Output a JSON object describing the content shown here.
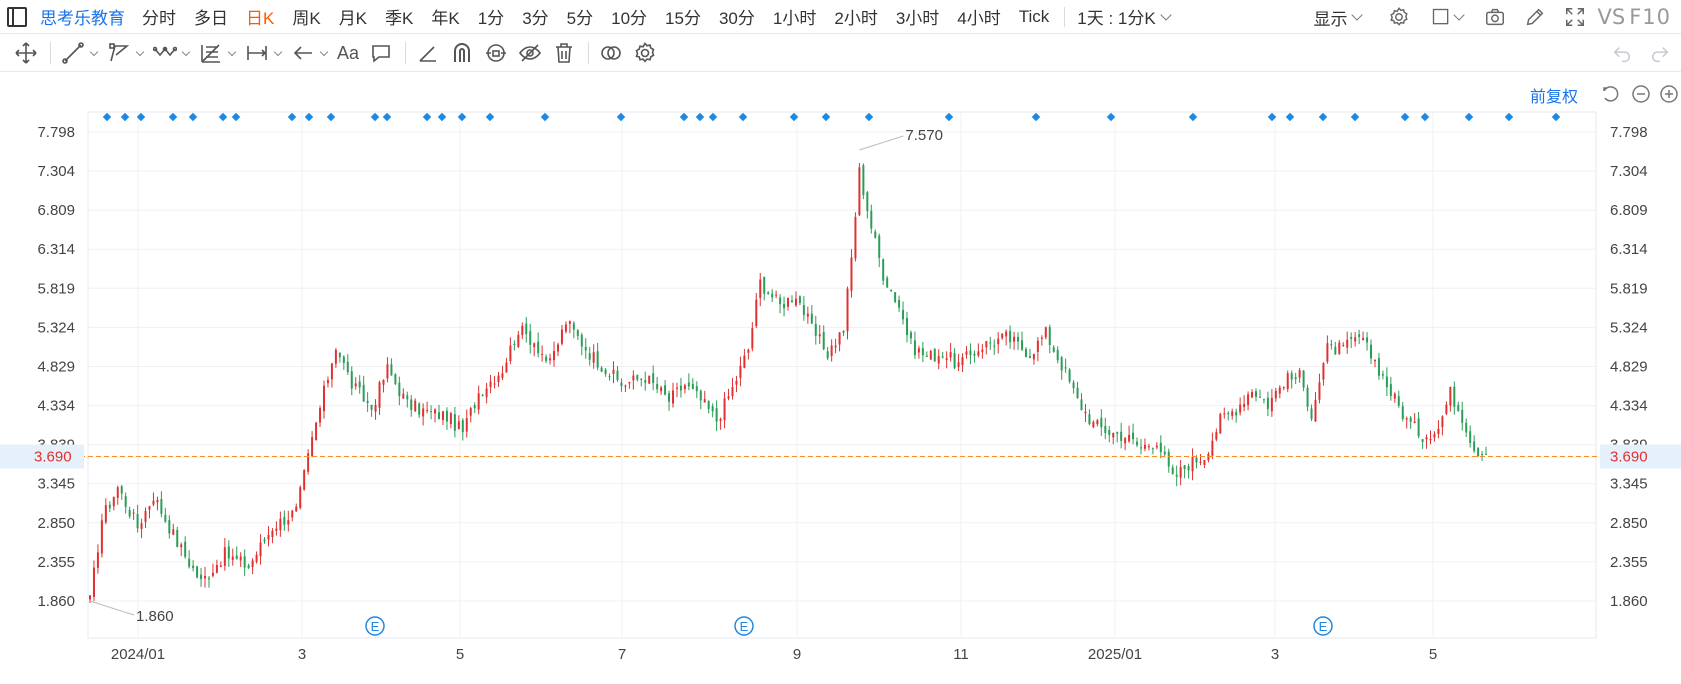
{
  "app": {
    "name": "思考乐教育"
  },
  "periods": [
    {
      "label": "分时",
      "active": false
    },
    {
      "label": "多日",
      "active": false
    },
    {
      "label": "日K",
      "active": true
    },
    {
      "label": "周K",
      "active": false
    },
    {
      "label": "月K",
      "active": false
    },
    {
      "label": "季K",
      "active": false
    },
    {
      "label": "年K",
      "active": false
    },
    {
      "label": "1分",
      "active": false
    },
    {
      "label": "3分",
      "active": false
    },
    {
      "label": "5分",
      "active": false
    },
    {
      "label": "10分",
      "active": false
    },
    {
      "label": "15分",
      "active": false
    },
    {
      "label": "30分",
      "active": false
    },
    {
      "label": "1小时",
      "active": false
    },
    {
      "label": "2小时",
      "active": false
    },
    {
      "label": "3小时",
      "active": false
    },
    {
      "label": "4小时",
      "active": false
    },
    {
      "label": "Tick",
      "active": false
    }
  ],
  "interval_select": {
    "label": "1天 : 1分K"
  },
  "toolbar_right": {
    "display_label": "显示",
    "vs_label": "VS",
    "f10_label": "F10"
  },
  "draw_tools": {
    "text_tool_label": "Aa"
  },
  "chart_header": {
    "adjust_label": "前复权"
  },
  "colors": {
    "up": "#e03131",
    "down": "#2a9d57",
    "accent": "#1a73e8",
    "active_period": "#ff5a00",
    "price_line": "#ff8a1f",
    "marker": "#1e88e5"
  },
  "chart_data": {
    "type": "candlestick",
    "y_ticks": [
      "7.798",
      "7.304",
      "6.809",
      "6.314",
      "5.819",
      "5.324",
      "4.829",
      "4.334",
      "3.839",
      "3.345",
      "2.850",
      "2.355",
      "1.860"
    ],
    "ylim": [
      1.86,
      7.798
    ],
    "x_ticks": [
      "2024/01",
      "3",
      "5",
      "7",
      "9",
      "11",
      "2025/01",
      "3",
      "5"
    ],
    "current_price": "3.690",
    "max_label": "7.570",
    "min_label": "1.860",
    "event_marker_label": "E",
    "event_marker_count": 3,
    "dot_marker_count": 38,
    "keypoints": [
      [
        0,
        1.86
      ],
      [
        3,
        2.9
      ],
      [
        7,
        3.3
      ],
      [
        12,
        2.8
      ],
      [
        16,
        3.2
      ],
      [
        22,
        2.6
      ],
      [
        28,
        2.1
      ],
      [
        34,
        2.45
      ],
      [
        40,
        2.3
      ],
      [
        46,
        2.8
      ],
      [
        52,
        3.0
      ],
      [
        56,
        3.9
      ],
      [
        59,
        4.5
      ],
      [
        62,
        5.1
      ],
      [
        66,
        4.6
      ],
      [
        71,
        4.3
      ],
      [
        75,
        4.8
      ],
      [
        80,
        4.35
      ],
      [
        85,
        4.25
      ],
      [
        90,
        4.2
      ],
      [
        94,
        4.0
      ],
      [
        98,
        4.5
      ],
      [
        104,
        4.8
      ],
      [
        108,
        5.3
      ],
      [
        112,
        5.15
      ],
      [
        116,
        4.85
      ],
      [
        120,
        5.4
      ],
      [
        126,
        5.0
      ],
      [
        134,
        4.6
      ],
      [
        140,
        4.7
      ],
      [
        146,
        4.4
      ],
      [
        150,
        4.6
      ],
      [
        154,
        4.4
      ],
      [
        158,
        4.15
      ],
      [
        162,
        4.55
      ],
      [
        166,
        5.05
      ],
      [
        169,
        5.9
      ],
      [
        174,
        5.6
      ],
      [
        178,
        5.75
      ],
      [
        182,
        5.3
      ],
      [
        186,
        5.0
      ],
      [
        190,
        5.3
      ],
      [
        192,
        6.2
      ],
      [
        194,
        7.3
      ],
      [
        197,
        6.6
      ],
      [
        200,
        6.0
      ],
      [
        204,
        5.6
      ],
      [
        207,
        5.1
      ],
      [
        211,
        4.95
      ],
      [
        215,
        5.0
      ],
      [
        219,
        4.85
      ],
      [
        225,
        5.1
      ],
      [
        231,
        5.2
      ],
      [
        237,
        5.0
      ],
      [
        241,
        5.25
      ],
      [
        245,
        4.85
      ],
      [
        249,
        4.4
      ],
      [
        253,
        4.1
      ],
      [
        257,
        4.0
      ],
      [
        261,
        3.95
      ],
      [
        265,
        3.8
      ],
      [
        269,
        3.9
      ],
      [
        273,
        3.4
      ],
      [
        277,
        3.6
      ],
      [
        281,
        3.7
      ],
      [
        285,
        4.15
      ],
      [
        289,
        4.3
      ],
      [
        293,
        4.55
      ],
      [
        297,
        4.35
      ],
      [
        301,
        4.65
      ],
      [
        305,
        4.7
      ],
      [
        308,
        4.25
      ],
      [
        312,
        5.05
      ],
      [
        316,
        5.05
      ],
      [
        320,
        5.2
      ],
      [
        324,
        4.9
      ],
      [
        328,
        4.5
      ],
      [
        332,
        4.15
      ],
      [
        336,
        3.95
      ],
      [
        340,
        4.05
      ],
      [
        343,
        4.5
      ],
      [
        346,
        4.2
      ],
      [
        349,
        3.8
      ],
      [
        352,
        3.72
      ]
    ]
  }
}
